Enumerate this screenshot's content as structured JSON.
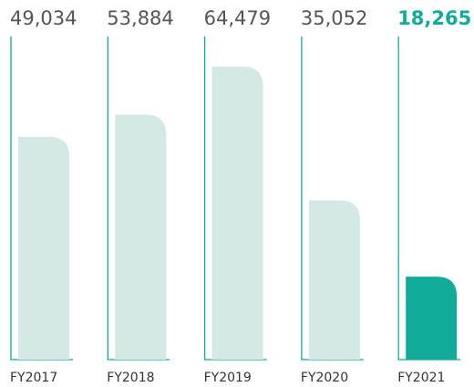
{
  "chart_data": {
    "type": "bar",
    "categories": [
      "FY2017",
      "FY2018",
      "FY2019",
      "FY2020",
      "FY2021"
    ],
    "values": [
      49034,
      53884,
      64479,
      35052,
      18265
    ],
    "value_labels": [
      "49,034",
      "53,884",
      "64,479",
      "35,052",
      "18,265"
    ],
    "color": "#d4e9e6",
    "highlight": 4,
    "highlight_color": "#12ab99",
    "line_color": "#12ab99"
  }
}
